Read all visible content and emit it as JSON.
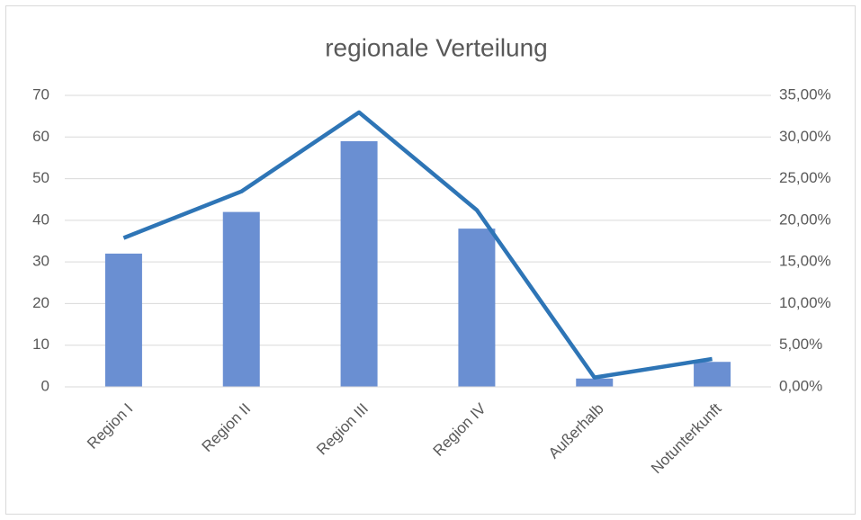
{
  "chart_data": {
    "type": "combo",
    "title": "regionale Verteilung",
    "categories": [
      "Region I",
      "Region II",
      "Region III",
      "Region IV",
      "Außerhalb",
      "Notunterkunft"
    ],
    "series": [
      {
        "type": "bar",
        "color": "#6a8fd2",
        "values": [
          32,
          42,
          59,
          38,
          2,
          6
        ]
      },
      {
        "type": "line",
        "axis": "y2",
        "color": "#2e75b6",
        "values": [
          17.88,
          23.46,
          32.96,
          21.23,
          1.12,
          3.35
        ]
      }
    ],
    "ylim": [
      0,
      70
    ],
    "yticks": [
      0,
      10,
      20,
      30,
      40,
      50,
      60,
      70
    ],
    "y2lim": [
      0,
      35
    ],
    "y2ticks": [
      {
        "value": 0,
        "label": "0,00%"
      },
      {
        "value": 5,
        "label": "5,00%"
      },
      {
        "value": 10,
        "label": "10,00%"
      },
      {
        "value": 15,
        "label": "15,00%"
      },
      {
        "value": 20,
        "label": "20,00%"
      },
      {
        "value": 25,
        "label": "25,00%"
      },
      {
        "value": 30,
        "label": "30,00%"
      },
      {
        "value": 35,
        "label": "35,00%"
      }
    ],
    "grid": true
  }
}
